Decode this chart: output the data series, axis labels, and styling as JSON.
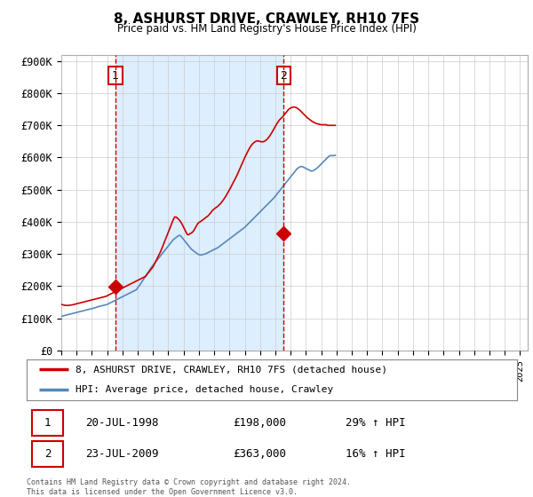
{
  "title": "8, ASHURST DRIVE, CRAWLEY, RH10 7FS",
  "subtitle": "Price paid vs. HM Land Registry's House Price Index (HPI)",
  "ylabel_ticks": [
    "£0",
    "£100K",
    "£200K",
    "£300K",
    "£400K",
    "£500K",
    "£600K",
    "£700K",
    "£800K",
    "£900K"
  ],
  "ytick_values": [
    0,
    100000,
    200000,
    300000,
    400000,
    500000,
    600000,
    700000,
    800000,
    900000
  ],
  "ylim": [
    0,
    920000
  ],
  "xlim": [
    1995.0,
    2025.5
  ],
  "transaction1_year": 1998.55,
  "transaction1_price": 198000,
  "transaction2_year": 2009.55,
  "transaction2_price": 363000,
  "legend_property": "8, ASHURST DRIVE, CRAWLEY, RH10 7FS (detached house)",
  "legend_hpi": "HPI: Average price, detached house, Crawley",
  "footer": "Contains HM Land Registry data © Crown copyright and database right 2024.\nThis data is licensed under the Open Government Licence v3.0.",
  "property_color": "#cc0000",
  "hpi_color": "#5588bb",
  "vline_color": "#cc0000",
  "fill_color": "#ddeeff",
  "background_color": "#ffffff",
  "grid_color": "#cccccc",
  "t1_date": "20-JUL-1998",
  "t2_date": "23-JUL-2009",
  "t1_price_str": "£198,000",
  "t2_price_str": "£363,000",
  "t1_hpi": "29% ↑ HPI",
  "t2_hpi": "16% ↑ HPI",
  "hpi_monthly": {
    "start_year": 1995,
    "start_month": 1,
    "values": [
      105000,
      107000,
      108000,
      109000,
      110000,
      111000,
      112000,
      113000,
      114000,
      115000,
      116000,
      117000,
      118000,
      119000,
      120000,
      121000,
      122000,
      123000,
      124000,
      125000,
      126000,
      127000,
      128000,
      129000,
      130000,
      131000,
      132000,
      133000,
      135000,
      136000,
      137000,
      138000,
      139000,
      140000,
      141000,
      142000,
      143000,
      145000,
      147000,
      149000,
      151000,
      153000,
      155000,
      157000,
      159000,
      161000,
      163000,
      165000,
      167000,
      169000,
      171000,
      173000,
      175000,
      177000,
      179000,
      181000,
      183000,
      185000,
      187000,
      189000,
      195000,
      200000,
      206000,
      212000,
      218000,
      224000,
      230000,
      236000,
      242000,
      248000,
      254000,
      260000,
      265000,
      270000,
      275000,
      280000,
      285000,
      290000,
      295000,
      300000,
      305000,
      310000,
      315000,
      320000,
      325000,
      330000,
      335000,
      340000,
      345000,
      348000,
      351000,
      354000,
      357000,
      358000,
      355000,
      350000,
      345000,
      340000,
      335000,
      330000,
      325000,
      320000,
      315000,
      312000,
      309000,
      306000,
      303000,
      300000,
      298000,
      297000,
      297000,
      298000,
      299000,
      300000,
      302000,
      304000,
      306000,
      308000,
      310000,
      312000,
      314000,
      316000,
      318000,
      320000,
      323000,
      326000,
      329000,
      332000,
      335000,
      338000,
      341000,
      344000,
      347000,
      350000,
      353000,
      356000,
      359000,
      362000,
      365000,
      368000,
      371000,
      374000,
      377000,
      380000,
      383000,
      387000,
      391000,
      395000,
      399000,
      403000,
      407000,
      411000,
      415000,
      419000,
      423000,
      427000,
      431000,
      435000,
      439000,
      443000,
      447000,
      451000,
      455000,
      459000,
      463000,
      467000,
      471000,
      475000,
      480000,
      485000,
      490000,
      495000,
      500000,
      505000,
      510000,
      515000,
      520000,
      525000,
      530000,
      535000,
      540000,
      545000,
      550000,
      555000,
      560000,
      565000,
      568000,
      570000,
      572000,
      572000,
      570000,
      568000,
      566000,
      564000,
      562000,
      560000,
      558000,
      558000,
      560000,
      562000,
      565000,
      568000,
      572000,
      576000,
      580000,
      584000,
      588000,
      592000,
      596000,
      600000,
      604000,
      606000,
      606000,
      606000,
      606000,
      607000
    ]
  },
  "prop_monthly": {
    "start_year": 1995,
    "start_month": 1,
    "values": [
      143000,
      142000,
      141000,
      140000,
      140000,
      140000,
      140000,
      141000,
      141000,
      142000,
      143000,
      144000,
      145000,
      146000,
      147000,
      148000,
      149000,
      150000,
      151000,
      152000,
      153000,
      154000,
      155000,
      156000,
      157000,
      158000,
      159000,
      160000,
      161000,
      162000,
      163000,
      164000,
      165000,
      166000,
      167000,
      168000,
      170000,
      172000,
      174000,
      176000,
      178000,
      180000,
      182000,
      184000,
      186000,
      188000,
      190000,
      192000,
      194000,
      196000,
      198000,
      200000,
      202000,
      204000,
      206000,
      208000,
      210000,
      212000,
      214000,
      216000,
      218000,
      220000,
      222000,
      224000,
      226000,
      228000,
      230000,
      235000,
      240000,
      245000,
      250000,
      255000,
      260000,
      268000,
      276000,
      284000,
      292000,
      300000,
      308000,
      318000,
      328000,
      338000,
      348000,
      358000,
      368000,
      378000,
      388000,
      398000,
      408000,
      415000,
      415000,
      412000,
      408000,
      404000,
      398000,
      391000,
      383000,
      375000,
      367000,
      360000,
      360000,
      363000,
      365000,
      368000,
      373000,
      380000,
      387000,
      394000,
      398000,
      400000,
      403000,
      406000,
      409000,
      412000,
      415000,
      418000,
      422000,
      427000,
      432000,
      437000,
      440000,
      443000,
      446000,
      449000,
      453000,
      457000,
      462000,
      467000,
      473000,
      479000,
      486000,
      493000,
      500000,
      507000,
      515000,
      523000,
      530000,
      538000,
      546000,
      555000,
      564000,
      573000,
      582000,
      591000,
      600000,
      608000,
      616000,
      624000,
      631000,
      637000,
      642000,
      646000,
      649000,
      651000,
      652000,
      651000,
      650000,
      649000,
      649000,
      650000,
      652000,
      655000,
      659000,
      664000,
      670000,
      676000,
      683000,
      690000,
      697000,
      704000,
      710000,
      716000,
      720000,
      724000,
      728000,
      733000,
      738000,
      743000,
      748000,
      752000,
      754000,
      756000,
      757000,
      757000,
      756000,
      754000,
      751000,
      748000,
      744000,
      740000,
      736000,
      732000,
      728000,
      724000,
      721000,
      718000,
      715000,
      712000,
      710000,
      708000,
      706000,
      705000,
      704000,
      703000,
      702000,
      702000,
      702000,
      702000,
      702000,
      700000,
      700000,
      700000,
      700000,
      700000,
      700000,
      700000
    ]
  }
}
